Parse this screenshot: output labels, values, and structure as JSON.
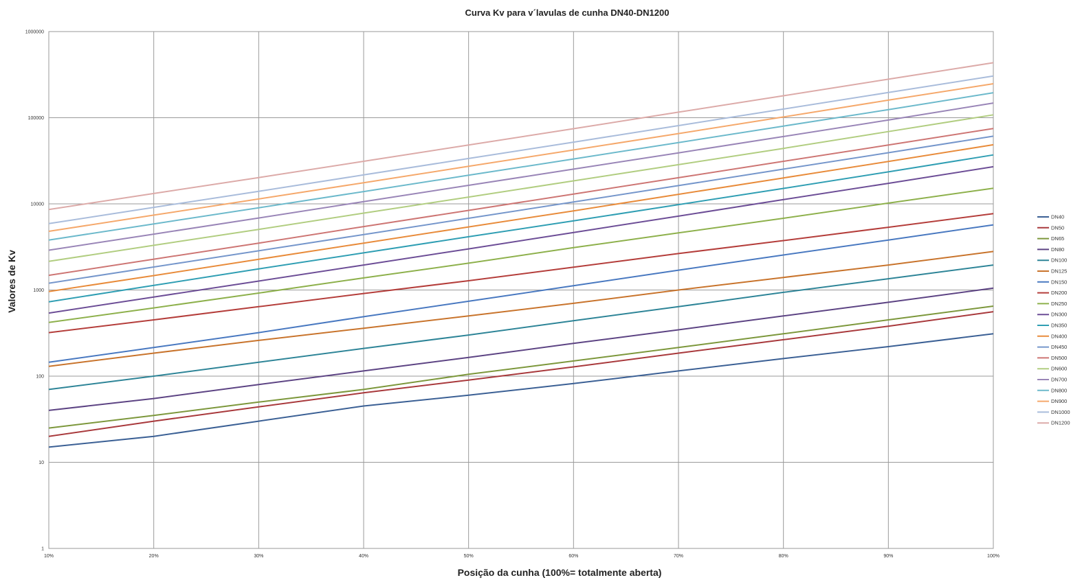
{
  "chart_data": {
    "type": "line",
    "title": "Curva Kv para v´lavulas de cunha DN40-DN1200",
    "xlabel": "Posição da cunha (100%= totalmente aberta)",
    "ylabel": "Valores de Kv",
    "y_scale": "log",
    "ylim": [
      1,
      1000000
    ],
    "y_ticks": [
      "1",
      "10",
      "100",
      "1000",
      "10000",
      "100000",
      "1000000"
    ],
    "x": [
      "10%",
      "20%",
      "30%",
      "40%",
      "50%",
      "60%",
      "70%",
      "80%",
      "90%",
      "100%"
    ],
    "grid": true,
    "legend_position": "right",
    "series": [
      {
        "name": "DN40",
        "color": "#3a5f94",
        "values": [
          15,
          20,
          30,
          45,
          60,
          82,
          115,
          160,
          220,
          310
        ]
      },
      {
        "name": "DN50",
        "color": "#a8383b",
        "values": [
          20,
          30,
          44,
          64,
          90,
          128,
          185,
          265,
          380,
          560
        ]
      },
      {
        "name": "DN65",
        "color": "#7c973b",
        "values": [
          25,
          35,
          50,
          70,
          105,
          150,
          215,
          310,
          450,
          650
        ]
      },
      {
        "name": "DN80",
        "color": "#5c4383",
        "values": [
          40,
          55,
          80,
          115,
          165,
          240,
          345,
          500,
          720,
          1050
        ]
      },
      {
        "name": "DN100",
        "color": "#2d8497",
        "values": [
          70,
          100,
          145,
          210,
          300,
          440,
          640,
          940,
          1350,
          1950
        ]
      },
      {
        "name": "DN125",
        "color": "#c8732b",
        "values": [
          130,
          185,
          260,
          360,
          500,
          700,
          1000,
          1400,
          1950,
          2800
        ]
      },
      {
        "name": "DN150",
        "color": "#4878c0",
        "values": [
          145,
          215,
          320,
          490,
          740,
          1120,
          1700,
          2550,
          3800,
          5700
        ]
      },
      {
        "name": "DN200",
        "color": "#b43d3a",
        "values": [
          320,
          450,
          640,
          910,
          1280,
          1840,
          2650,
          3750,
          5350,
          7700
        ]
      },
      {
        "name": "DN250",
        "color": "#8db04b",
        "values": [
          420,
          620,
          920,
          1380,
          2050,
          3100,
          4600,
          6800,
          10200,
          15200
        ]
      },
      {
        "name": "DN300",
        "color": "#6c4d96",
        "values": [
          540,
          830,
          1270,
          1950,
          3000,
          4650,
          7200,
          11200,
          17300,
          27000
        ]
      },
      {
        "name": "DN350",
        "color": "#2f9eb3",
        "values": [
          730,
          1130,
          1760,
          2700,
          4150,
          6350,
          9800,
          15100,
          23500,
          37000
        ]
      },
      {
        "name": "DN400",
        "color": "#e88b3a",
        "values": [
          960,
          1470,
          2270,
          3500,
          5400,
          8300,
          12900,
          20000,
          31000,
          48500
        ]
      },
      {
        "name": "DN450",
        "color": "#7596cb",
        "values": [
          1200,
          1850,
          2850,
          4400,
          6800,
          10500,
          16300,
          25300,
          39200,
          61000
        ]
      },
      {
        "name": "DN500",
        "color": "#cd7573",
        "values": [
          1480,
          2280,
          3500,
          5450,
          8400,
          13000,
          20100,
          31200,
          48200,
          75000
        ]
      },
      {
        "name": "DN600",
        "color": "#b1cd80",
        "values": [
          2150,
          3300,
          5050,
          7800,
          12000,
          18500,
          28500,
          44000,
          69000,
          108000
        ]
      },
      {
        "name": "DN700",
        "color": "#9985b7",
        "values": [
          2900,
          4450,
          6850,
          10600,
          16400,
          25300,
          39100,
          60500,
          94000,
          148000
        ]
      },
      {
        "name": "DN800",
        "color": "#6cb9cb",
        "values": [
          3800,
          5850,
          9000,
          13900,
          21500,
          33200,
          51500,
          80000,
          124000,
          195000
        ]
      },
      {
        "name": "DN900",
        "color": "#f5a86b",
        "values": [
          4800,
          7400,
          11400,
          17600,
          27300,
          42200,
          65500,
          102000,
          160000,
          248000
        ]
      },
      {
        "name": "DN1000",
        "color": "#a9bcdb",
        "values": [
          5900,
          9100,
          14000,
          21700,
          33600,
          52000,
          81000,
          126000,
          196000,
          305000
        ]
      },
      {
        "name": "DN1200",
        "color": "#dcaaa8",
        "values": [
          8600,
          13200,
          20200,
          31200,
          48200,
          74500,
          116000,
          180000,
          280000,
          435000
        ]
      }
    ]
  }
}
